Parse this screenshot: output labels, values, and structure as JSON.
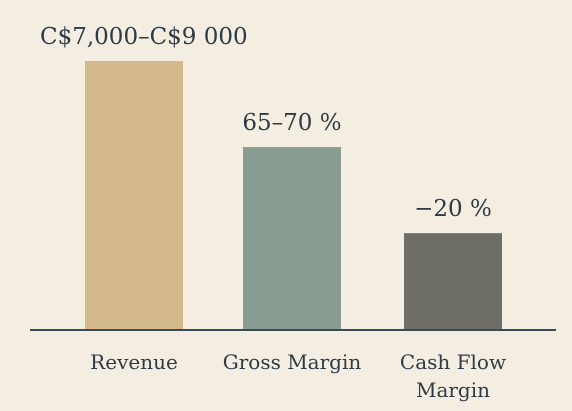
{
  "chart_data": {
    "type": "bar",
    "title": "",
    "xlabel": "",
    "ylabel": "",
    "categories": [
      {
        "lines": [
          "Revenue"
        ]
      },
      {
        "lines": [
          "Gross Margin"
        ]
      },
      {
        "lines": [
          "Cash Flow",
          "Margin"
        ]
      }
    ],
    "data_labels": [
      "C$7,000–C$9 000",
      "65–70 %",
      "−20 %"
    ],
    "relative_levels": [
      1.0,
      0.68,
      0.36
    ],
    "colors": [
      "#d4b98c",
      "#889c91",
      "#6f6e66"
    ],
    "axis_color": "#3c4a55",
    "grid": false,
    "legend": "none"
  }
}
